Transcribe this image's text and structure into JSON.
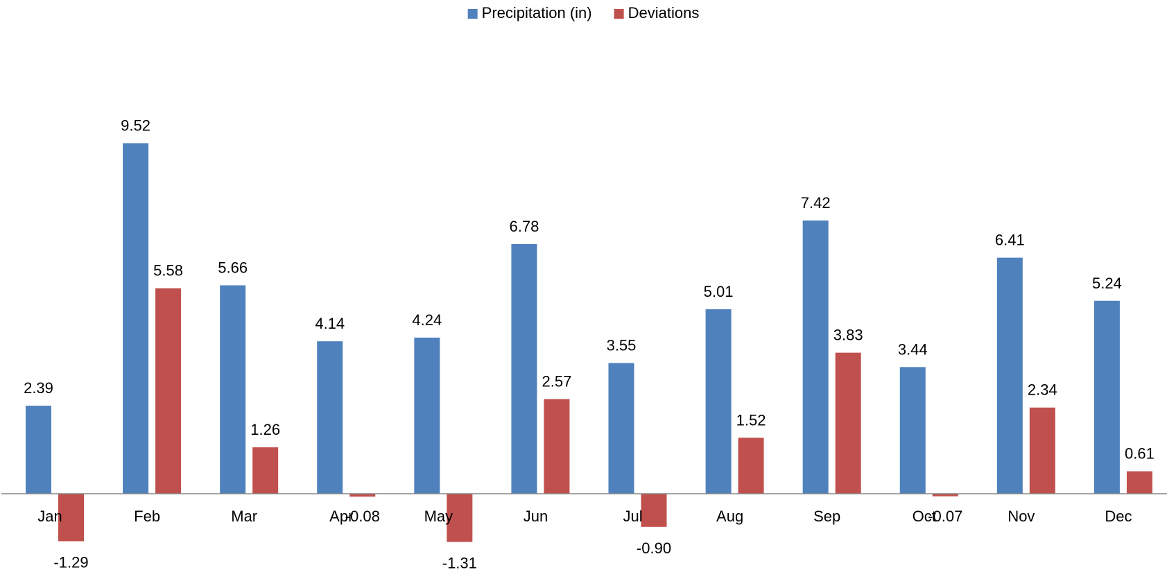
{
  "chart_data": {
    "type": "bar",
    "title": "",
    "xlabel": "",
    "ylabel": "",
    "categories": [
      "Jan",
      "Feb",
      "Mar",
      "Apr",
      "May",
      "Jun",
      "Jul",
      "Aug",
      "Sep",
      "Oct",
      "Nov",
      "Dec"
    ],
    "series": [
      {
        "name": "Precipitation (in)",
        "color": "#4F81BD",
        "values": [
          2.39,
          9.52,
          5.66,
          4.14,
          4.24,
          6.78,
          3.55,
          5.01,
          7.42,
          3.44,
          6.41,
          5.24
        ]
      },
      {
        "name": "Deviations",
        "color": "#C0504D",
        "values": [
          -1.29,
          5.58,
          1.26,
          -0.08,
          -1.31,
          2.57,
          -0.9,
          1.52,
          3.83,
          -0.07,
          2.34,
          0.61
        ]
      }
    ],
    "ylim": [
      -2,
      10
    ],
    "grid": false,
    "legend": "top-center",
    "data_labels": true,
    "label_decimals": 2
  }
}
